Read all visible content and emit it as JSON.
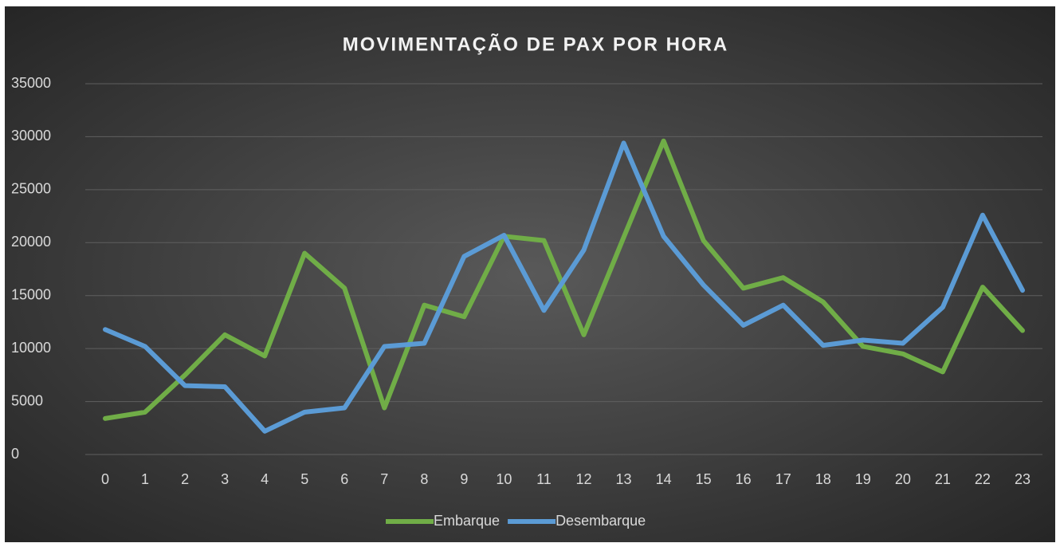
{
  "chart_data": {
    "type": "line",
    "title": "MOVIMENTAÇÃO DE PAX POR HORA",
    "categories": [
      "0",
      "1",
      "2",
      "3",
      "4",
      "5",
      "6",
      "7",
      "8",
      "9",
      "10",
      "11",
      "12",
      "13",
      "14",
      "15",
      "16",
      "17",
      "18",
      "19",
      "20",
      "21",
      "22",
      "23"
    ],
    "series": [
      {
        "name": "Embarque",
        "color": "#70ad47",
        "values": [
          3400,
          4000,
          7500,
          11300,
          9300,
          19000,
          15700,
          4400,
          14100,
          13000,
          20600,
          20200,
          11300,
          20500,
          29600,
          20200,
          15700,
          16700,
          14400,
          10200,
          9500,
          7800,
          15800,
          11700
        ]
      },
      {
        "name": "Desembarque",
        "color": "#5b9bd5",
        "values": [
          11800,
          10200,
          6500,
          6400,
          2200,
          4000,
          4400,
          10200,
          10500,
          18700,
          20700,
          13600,
          19300,
          29400,
          20600,
          16000,
          12200,
          14100,
          10300,
          10800,
          10500,
          13900,
          22600,
          15500
        ]
      }
    ],
    "ylim": [
      0,
      35000
    ],
    "yticks": [
      0,
      5000,
      10000,
      15000,
      20000,
      25000,
      30000,
      35000
    ],
    "grid": true,
    "legend": "bottom"
  }
}
